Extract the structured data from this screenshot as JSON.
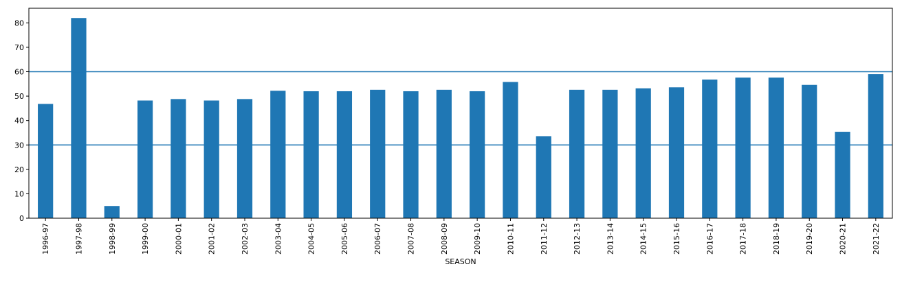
{
  "chart_data": {
    "type": "bar",
    "xlabel": "SEASON",
    "ylabel": "",
    "ylim": [
      0,
      86
    ],
    "yticks": [
      0,
      10,
      20,
      30,
      40,
      50,
      60,
      70,
      80
    ],
    "categories": [
      "1996-97",
      "1997-98",
      "1998-99",
      "1999-00",
      "2000-01",
      "2001-02",
      "2002-03",
      "2003-04",
      "2004-05",
      "2005-06",
      "2006-07",
      "2007-08",
      "2008-09",
      "2009-10",
      "2010-11",
      "2011-12",
      "2012-13",
      "2013-14",
      "2014-15",
      "2015-16",
      "2016-17",
      "2017-18",
      "2018-19",
      "2019-20",
      "2020-21",
      "2021-22"
    ],
    "values": [
      46.8,
      82,
      5,
      48.2,
      48.8,
      48.2,
      48.8,
      52.2,
      52,
      52,
      52.6,
      52,
      52.6,
      52,
      55.8,
      33.6,
      52.6,
      52.6,
      53.2,
      53.6,
      56.8,
      57.6,
      57.6,
      54.6,
      35.4,
      59
    ],
    "hlines": [
      60,
      30
    ],
    "grid": false,
    "colors": {
      "bar": "#1f77b4",
      "hline": "#1f77b4",
      "axis": "#000000"
    }
  }
}
